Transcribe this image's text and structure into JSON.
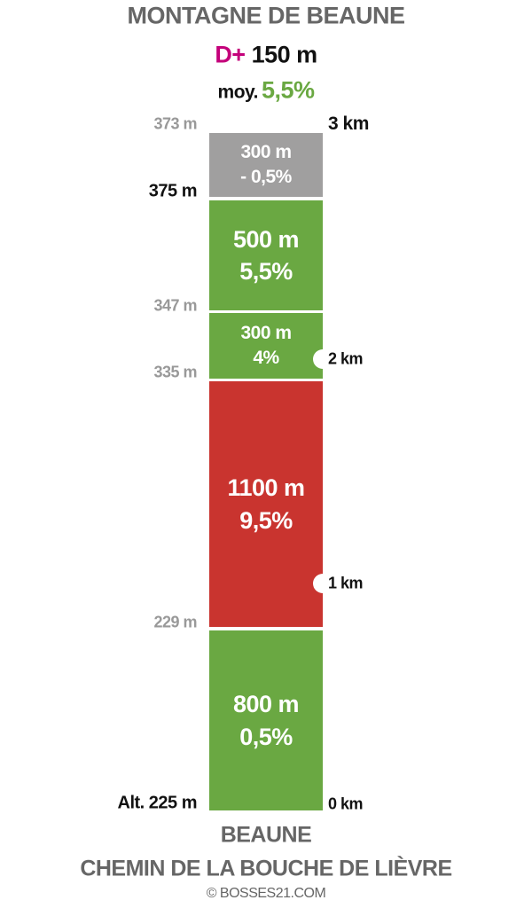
{
  "header": {
    "title": "MONTAGNE DE BEAUNE",
    "climb_label": "D+",
    "climb_value": "150 m",
    "avg_label": "moy.",
    "avg_value": "5,5%"
  },
  "segments": [
    {
      "length": "300 m",
      "grade": "- 0,5%"
    },
    {
      "length": "500 m",
      "grade": "5,5%"
    },
    {
      "length": "300 m",
      "grade": "4%"
    },
    {
      "length": "1100 m",
      "grade": "9,5%"
    },
    {
      "length": "800 m",
      "grade": "0,5%"
    }
  ],
  "altitudes": [
    "373 m",
    "375 m",
    "347 m",
    "335 m",
    "229 m",
    "Alt. 225 m"
  ],
  "distances": [
    "3 km",
    "2 km",
    "1 km",
    "0 km"
  ],
  "footer": {
    "start": "BEAUNE",
    "place": "CHEMIN DE LA BOUCHE DE LIÈVRE",
    "credit": "© BOSSES21.COM"
  }
}
